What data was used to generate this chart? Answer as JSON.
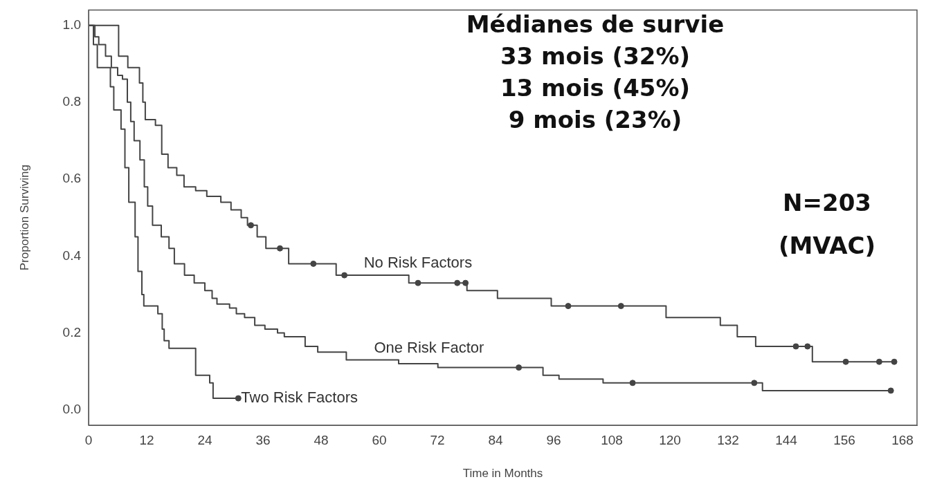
{
  "chart_data": {
    "type": "step",
    "xlabel": "Time in Months",
    "ylabel": "Proportion Surviving",
    "xlim": [
      0,
      171
    ],
    "xticks": [
      0,
      12,
      24,
      36,
      48,
      60,
      72,
      84,
      96,
      108,
      120,
      132,
      144,
      156,
      168
    ],
    "ylim": [
      -0.04,
      1.04
    ],
    "yticks": [
      {
        "value": 0,
        "label": "0.0"
      },
      {
        "value": 0.2,
        "label": "0.2"
      },
      {
        "value": 0.4,
        "label": "0.4"
      },
      {
        "value": 0.6,
        "label": "0.6"
      },
      {
        "value": 0.8,
        "label": "0.8"
      },
      {
        "value": 1,
        "label": "1.0"
      }
    ],
    "legend": false,
    "marker": "none",
    "line_style": "solid",
    "series": [
      {
        "name": "No Risk Factors",
        "color": "#444444",
        "x": [
          0,
          6.2,
          8.1,
          10.5,
          11.2,
          11.7,
          13.8,
          15.1,
          16.4,
          18.2,
          19.7,
          22.1,
          24.4,
          27.3,
          29.4,
          31.5,
          32.8,
          34.8,
          36.6,
          41.3,
          51.1,
          66.1,
          78.1,
          84.4,
          95.5,
          119.2,
          130.4,
          133.9,
          137.7,
          149.4,
          166.3
        ],
        "values": [
          1,
          0.92,
          0.89,
          0.85,
          0.8,
          0.755,
          0.74,
          0.665,
          0.63,
          0.61,
          0.58,
          0.57,
          0.555,
          0.54,
          0.52,
          0.5,
          0.48,
          0.45,
          0.42,
          0.38,
          0.35,
          0.33,
          0.31,
          0.29,
          0.27,
          0.24,
          0.22,
          0.19,
          0.165,
          0.125,
          0.125
        ]
      },
      {
        "name": "One Risk Factor",
        "color": "#444444",
        "x": [
          0,
          1.3,
          2.1,
          3.5,
          4.7,
          6,
          7,
          8,
          8.7,
          9.4,
          10.6,
          11.5,
          12.2,
          13.2,
          15,
          16.6,
          17.7,
          19.8,
          21.8,
          24,
          25.5,
          26.5,
          29.1,
          30.5,
          32.2,
          34.3,
          36.4,
          39,
          40.4,
          44.7,
          47.3,
          53.2,
          64,
          72.1,
          93.8,
          97.1,
          106.2,
          139.1,
          165.6
        ],
        "values": [
          1,
          0.97,
          0.95,
          0.92,
          0.89,
          0.87,
          0.86,
          0.8,
          0.75,
          0.7,
          0.65,
          0.58,
          0.53,
          0.48,
          0.45,
          0.42,
          0.38,
          0.35,
          0.33,
          0.31,
          0.29,
          0.275,
          0.265,
          0.25,
          0.24,
          0.22,
          0.21,
          0.2,
          0.19,
          0.165,
          0.15,
          0.13,
          0.12,
          0.11,
          0.09,
          0.08,
          0.07,
          0.05,
          0.05
        ]
      },
      {
        "name": "Two Risk Factors",
        "color": "#444444",
        "x": [
          0,
          1,
          1.8,
          4.5,
          5.2,
          6.7,
          7.5,
          8.3,
          9.6,
          10.2,
          11,
          11.4,
          14.3,
          15.2,
          15.6,
          16.6,
          22.1,
          25,
          25.7,
          30.9
        ],
        "values": [
          1,
          0.95,
          0.89,
          0.84,
          0.78,
          0.73,
          0.63,
          0.54,
          0.45,
          0.36,
          0.3,
          0.27,
          0.25,
          0.21,
          0.18,
          0.16,
          0.09,
          0.07,
          0.03,
          0.03
        ]
      },
      {
        "type": "scatter",
        "marker": "circle",
        "color": "#444444",
        "x": [
          33.5,
          39.5,
          46.4,
          52.8,
          68,
          76.1,
          77.8,
          99,
          109.9,
          146,
          148.4,
          156.3,
          163.2,
          166.3,
          88.8,
          112.3,
          137.4,
          165.6,
          30.9
        ],
        "values": [
          0.48,
          0.42,
          0.38,
          0.35,
          0.33,
          0.33,
          0.33,
          0.27,
          0.27,
          0.165,
          0.165,
          0.125,
          0.125,
          0.125,
          0.11,
          0.07,
          0.07,
          0.05,
          0.03
        ]
      }
    ],
    "annotations": [
      "Médianes de survie",
      "33 mois (32%)",
      "13 mois (45%)",
      "9 mois (23%)",
      "N=203",
      "(MVAC)"
    ]
  }
}
